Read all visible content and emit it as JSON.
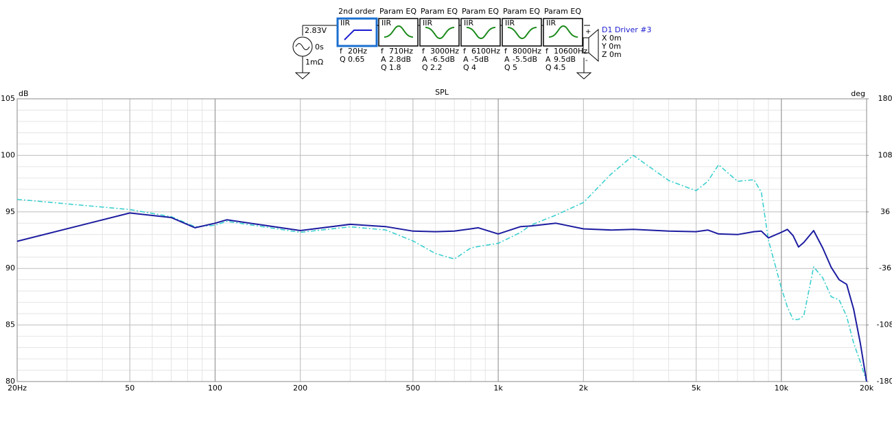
{
  "source": {
    "voltage": "2.83V",
    "delay": "0s",
    "impedance": "1mΩ"
  },
  "filters": [
    {
      "title": "2nd order",
      "kind": "IIR",
      "params": [
        [
          "f",
          "20Hz"
        ],
        [
          "Q",
          "0.65"
        ]
      ]
    },
    {
      "title": "Param EQ",
      "kind": "IIR",
      "params": [
        [
          "f",
          "710Hz"
        ],
        [
          "A",
          "2.8dB"
        ],
        [
          "Q",
          "1.8"
        ]
      ]
    },
    {
      "title": "Param EQ",
      "kind": "IIR",
      "params": [
        [
          "f",
          "3000Hz"
        ],
        [
          "A",
          "-6.5dB"
        ],
        [
          "Q",
          "2.2"
        ]
      ]
    },
    {
      "title": "Param EQ",
      "kind": "IIR",
      "params": [
        [
          "f",
          "6100Hz"
        ],
        [
          "A",
          "-5dB"
        ],
        [
          "Q",
          "4"
        ]
      ]
    },
    {
      "title": "Param EQ",
      "kind": "IIR",
      "params": [
        [
          "f",
          "8000Hz"
        ],
        [
          "A",
          "-5.5dB"
        ],
        [
          "Q",
          "5"
        ]
      ]
    },
    {
      "title": "Param EQ",
      "kind": "IIR",
      "params": [
        [
          "f",
          "10600Hz"
        ],
        [
          "A",
          "9.5dB"
        ],
        [
          "Q",
          "4.5"
        ]
      ]
    }
  ],
  "driver": {
    "name": "D1 Driver #3",
    "coords": [
      "X 0m",
      "Y 0m",
      "Z 0m"
    ]
  },
  "chart_data": {
    "type": "line",
    "title": "SPL",
    "y_label": "dB",
    "y2_label": "deg",
    "log_x": true,
    "grid": true,
    "xlim": [
      20,
      20000
    ],
    "xticks": [
      {
        "value": 20,
        "label": "20Hz"
      },
      50,
      100,
      200,
      500,
      {
        "value": 1000,
        "label": "1k"
      },
      {
        "value": 2000,
        "label": "2k"
      },
      {
        "value": 5000,
        "label": "5k"
      },
      {
        "value": 10000,
        "label": "10k"
      },
      {
        "value": 20000,
        "label": "20k"
      }
    ],
    "ylim": [
      80,
      105
    ],
    "yticks": [
      80,
      85,
      90,
      95,
      100,
      105
    ],
    "y2lim": [
      -180,
      180
    ],
    "y2ticks": [
      -180,
      -108,
      -36,
      36,
      108,
      180
    ],
    "x": [
      20,
      50,
      70,
      85,
      100,
      110,
      200,
      300,
      400,
      500,
      600,
      700,
      800,
      850,
      1000,
      1200,
      1300,
      1600,
      2000,
      2500,
      3000,
      4000,
      5000,
      5500,
      6000,
      7000,
      8000,
      8500,
      9000,
      10000,
      10500,
      11000,
      11500,
      12000,
      13000,
      14000,
      15000,
      16000,
      17000,
      18000,
      19000,
      20000
    ],
    "series": [
      {
        "name": "SPL",
        "color": "#1c1ca0",
        "dash": false,
        "values": [
          92.4,
          94.9,
          94.5,
          93.6,
          94.0,
          94.3,
          93.35,
          93.9,
          93.7,
          93.3,
          93.25,
          93.3,
          93.5,
          93.6,
          93.05,
          93.7,
          93.75,
          94.0,
          93.5,
          93.4,
          93.45,
          93.3,
          93.25,
          93.4,
          93.05,
          93.0,
          93.25,
          93.3,
          92.7,
          93.2,
          93.45,
          92.9,
          91.9,
          92.3,
          93.35,
          91.8,
          90.1,
          89.0,
          88.6,
          86.4,
          83.4,
          80
        ]
      },
      {
        "name": "Phase",
        "color": "#3ccfcf",
        "dash": true,
        "axis": "y2",
        "values": [
          52,
          39,
          30,
          17,
          19,
          24,
          10,
          17,
          13,
          -1,
          -17,
          -24,
          -10,
          -8,
          -4,
          10,
          19,
          32,
          48,
          84,
          108,
          76,
          63,
          75,
          96,
          75,
          77,
          61,
          0,
          -61,
          -85,
          -101,
          -101,
          -96,
          -34,
          -48,
          -72,
          -76,
          -97,
          -131,
          -155,
          -180
        ]
      }
    ]
  }
}
